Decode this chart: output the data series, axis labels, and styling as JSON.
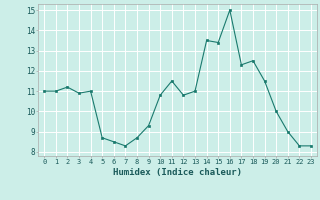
{
  "x": [
    0,
    1,
    2,
    3,
    4,
    5,
    6,
    7,
    8,
    9,
    10,
    11,
    12,
    13,
    14,
    15,
    16,
    17,
    18,
    19,
    20,
    21,
    22,
    23
  ],
  "y": [
    11.0,
    11.0,
    11.2,
    10.9,
    11.0,
    8.7,
    8.5,
    8.3,
    8.7,
    9.3,
    10.8,
    11.5,
    10.8,
    11.0,
    13.5,
    13.4,
    15.0,
    12.3,
    12.5,
    11.5,
    10.0,
    9.0,
    8.3,
    8.3
  ],
  "line_color": "#1a7a6e",
  "marker_color": "#1a7a6e",
  "bg_color": "#cceee8",
  "grid_color": "#ffffff",
  "grid_minor_color": "#e0f5f2",
  "xlabel": "Humidex (Indice chaleur)",
  "xlim": [
    -0.5,
    23.5
  ],
  "ylim": [
    7.8,
    15.3
  ],
  "yticks": [
    8,
    9,
    10,
    11,
    12,
    13,
    14,
    15
  ],
  "xticks": [
    0,
    1,
    2,
    3,
    4,
    5,
    6,
    7,
    8,
    9,
    10,
    11,
    12,
    13,
    14,
    15,
    16,
    17,
    18,
    19,
    20,
    21,
    22,
    23
  ],
  "xtick_labels": [
    "0",
    "1",
    "2",
    "3",
    "4",
    "5",
    "6",
    "7",
    "8",
    "9",
    "10",
    "11",
    "12",
    "13",
    "14",
    "15",
    "16",
    "17",
    "18",
    "19",
    "20",
    "21",
    "22",
    "23"
  ],
  "figsize": [
    3.2,
    2.0
  ],
  "dpi": 100
}
